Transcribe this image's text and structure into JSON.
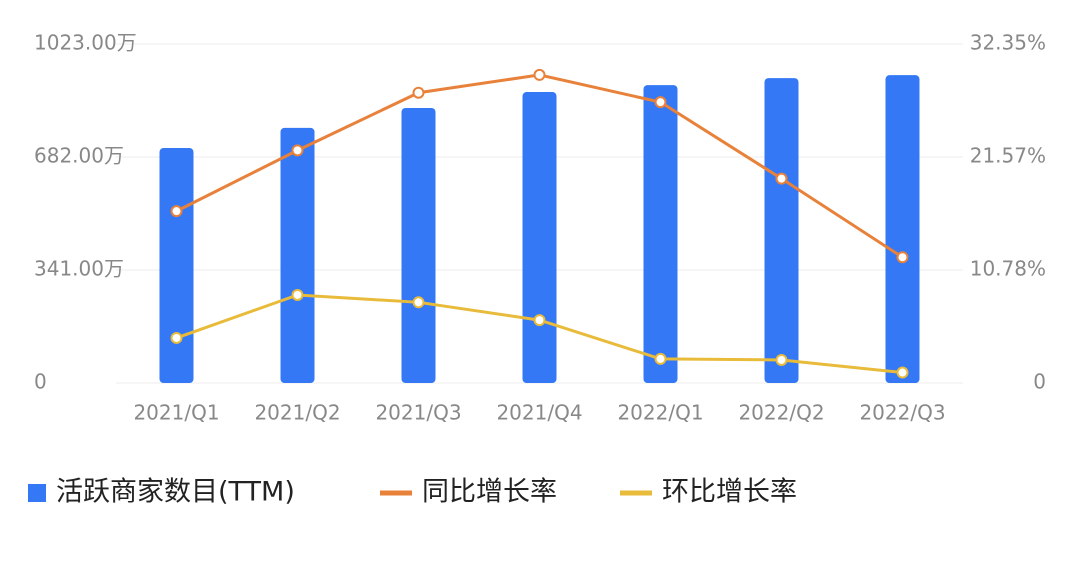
{
  "chart_data": {
    "type": "bar-line",
    "categories": [
      "2021/Q1",
      "2021/Q2",
      "2021/Q3",
      "2021/Q4",
      "2022/Q1",
      "2022/Q2",
      "2022/Q3"
    ],
    "series": [
      {
        "name": "活跃商家数目(TTM)",
        "type": "bar",
        "color": "#3478f6",
        "values": [
          709,
          770,
          830,
          878,
          899,
          920,
          929
        ]
      },
      {
        "name": "同比增长率",
        "type": "line",
        "axis": "y2",
        "color": "#e8813a",
        "values": [
          16.4,
          22.2,
          27.7,
          29.4,
          26.8,
          19.5,
          12.0
        ]
      },
      {
        "name": "环比增长率",
        "type": "line",
        "axis": "y2",
        "color": "#e8bb3a",
        "values": [
          4.3,
          8.4,
          7.7,
          6.0,
          2.3,
          2.2,
          1.0
        ]
      }
    ],
    "ylim": [
      0,
      1023
    ],
    "yticks": [
      0,
      {
        "value": 341,
        "label": "341.00万"
      },
      {
        "value": 682,
        "label": "682.00万"
      },
      {
        "value": 1023,
        "label": "1023.00万"
      }
    ],
    "y2lim": [
      0,
      32.35
    ],
    "y2ticks": [
      0,
      {
        "value": 10.78,
        "label": "10.78%"
      },
      {
        "value": 21.57,
        "label": "21.57%"
      },
      {
        "value": 32.35,
        "label": "32.35%"
      }
    ],
    "grid": true,
    "legend": "bottom"
  }
}
